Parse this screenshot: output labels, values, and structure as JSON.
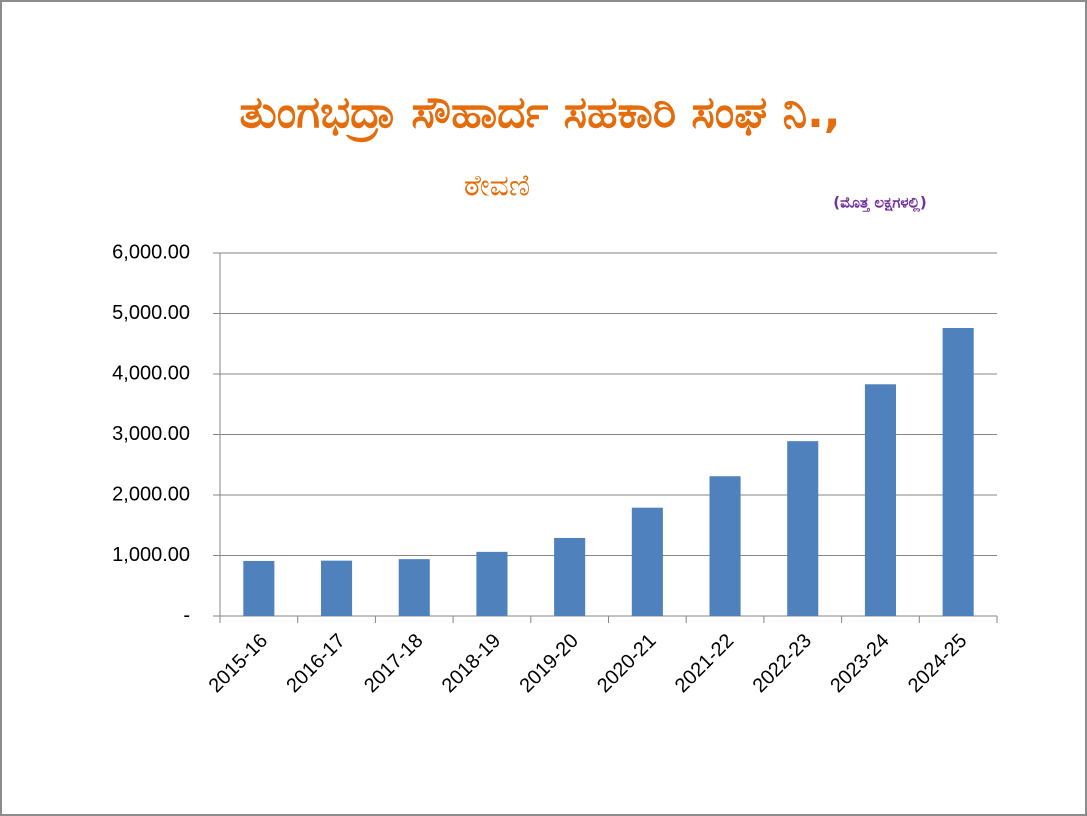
{
  "chart_data": {
    "type": "bar",
    "title": "ತುಂಗಭದ್ರಾ ಸೌಹಾರ್ದ ಸಹಕಾರಿ ಸಂಘ ನಿ.,",
    "subtitle": "ಠೇವಣಿ",
    "unit_note": "(ಮೊತ್ತ ಲಕ್ಷಗಳಲ್ಲಿ)",
    "categories": [
      "2015-16",
      "2016-17",
      "2017-18",
      "2018-19",
      "2019-20",
      "2020-21",
      "2021-22",
      "2022-23",
      "2023-24",
      "2024-25"
    ],
    "values": [
      910,
      915,
      940,
      1060,
      1290,
      1790,
      2310,
      2890,
      3830,
      4760
    ],
    "color": "#4f81bd",
    "ylim": [
      0,
      6000
    ],
    "yticks": [
      {
        "value": 0,
        "label": "-"
      },
      {
        "value": 1000,
        "label": "1,000.00"
      },
      {
        "value": 2000,
        "label": "2,000.00"
      },
      {
        "value": 3000,
        "label": "3,000.00"
      },
      {
        "value": 4000,
        "label": "4,000.00"
      },
      {
        "value": 5000,
        "label": "5,000.00"
      },
      {
        "value": 6000,
        "label": "6,000.00"
      }
    ],
    "grid": true
  }
}
